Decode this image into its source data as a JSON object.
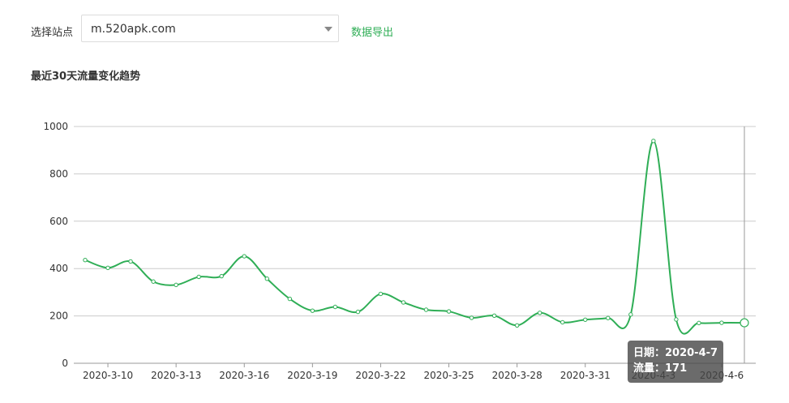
{
  "toolbar": {
    "site_label": "选择站点",
    "site_value": "m.520apk.com",
    "export_label": "数据导出"
  },
  "section": {
    "title": "最近30天流量变化趋势"
  },
  "tooltip": {
    "date_text": "日期：2020-4-7",
    "value_text": "流量：171"
  },
  "colors": {
    "line": "#2fae56",
    "grid": "#cccccc",
    "tooltip_bg": "#464646"
  },
  "chart_data": {
    "type": "line",
    "title": "最近30天流量变化趋势",
    "xlabel": "",
    "ylabel": "",
    "ylim": [
      0,
      1000
    ],
    "yticks": [
      0,
      200,
      400,
      600,
      800,
      1000
    ],
    "grid": true,
    "x": [
      "2020-3-9",
      "2020-3-10",
      "2020-3-11",
      "2020-3-12",
      "2020-3-13",
      "2020-3-14",
      "2020-3-15",
      "2020-3-16",
      "2020-3-17",
      "2020-3-18",
      "2020-3-19",
      "2020-3-20",
      "2020-3-21",
      "2020-3-22",
      "2020-3-23",
      "2020-3-24",
      "2020-3-25",
      "2020-3-26",
      "2020-3-27",
      "2020-3-28",
      "2020-3-29",
      "2020-3-30",
      "2020-3-31",
      "2020-4-1",
      "2020-4-2",
      "2020-4-3",
      "2020-4-4",
      "2020-4-5",
      "2020-4-6",
      "2020-4-7"
    ],
    "xtick_labels": [
      "2020-3-10",
      "2020-3-13",
      "2020-3-16",
      "2020-3-19",
      "2020-3-22",
      "2020-3-25",
      "2020-3-28",
      "2020-3-31",
      "2020-4-3",
      "2020-4-6"
    ],
    "series": [
      {
        "values": [
          436,
          403,
          430,
          345,
          331,
          365,
          368,
          452,
          357,
          272,
          222,
          238,
          217,
          293,
          257,
          226,
          219,
          192,
          201,
          160,
          213,
          173,
          184,
          191,
          206,
          939,
          185,
          170,
          171,
          171
        ]
      }
    ],
    "highlight": {
      "x": "2020-4-7",
      "value": 171
    }
  }
}
